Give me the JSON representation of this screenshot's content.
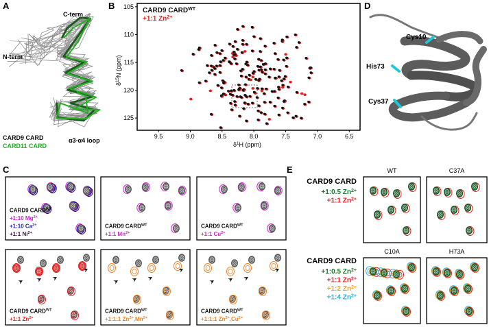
{
  "panels": {
    "a": "A",
    "b": "B",
    "c": "C",
    "d": "D",
    "e": "E"
  },
  "panel_a": {
    "c_term": "C-term",
    "n_term": "N-term",
    "loop": "α3-α4 loop",
    "legend": [
      {
        "text": "CARD9 CARD",
        "color": "#111111"
      },
      {
        "text": "CARD11 CARD",
        "color": "#22b022"
      }
    ]
  },
  "panel_b": {
    "legend": [
      {
        "runs": [
          "CARD9 CARD",
          "WT"
        ],
        "color": "#111111"
      },
      {
        "runs": [
          "+1:1 Zn",
          "2+"
        ],
        "color": "#e02020"
      }
    ],
    "x_label": [
      "δ",
      "1",
      "H (ppm)"
    ],
    "y_label": [
      "δ",
      "15",
      "N (ppm)"
    ],
    "xlim": [
      9.835,
      6.33
    ],
    "ylim": [
      104.4,
      127.2
    ],
    "xticks": [
      9.5,
      {
        "value": 9,
        "label": "9.0"
      },
      8.5,
      {
        "value": 8,
        "label": "8.0"
      },
      7.5,
      {
        "value": 7,
        "label": "7.0"
      },
      6.5
    ],
    "yticks": [
      105,
      110,
      115,
      120,
      125
    ]
  },
  "panel_d": {
    "labels": [
      "Cys10",
      "His73",
      "Cys37"
    ]
  },
  "panel_c": {
    "boxes": [
      {
        "overlay": [
          "#d020d0",
          "#2020c0",
          "#3a0a50"
        ],
        "lines": [
          {
            "runs": [
              "CARD9 CARD",
              "WT"
            ],
            "color": "#111111"
          },
          {
            "runs": [
              "+1:10 Mg",
              "2+"
            ],
            "color": "#d020d0"
          },
          {
            "runs": [
              "+1:10 Ca",
              "2+"
            ],
            "color": "#2020c0"
          },
          {
            "runs": [
              "+1:1 Ni",
              "2+"
            ],
            "color": "#3a0a50"
          }
        ]
      },
      {
        "overlay": [
          "#d020d0"
        ],
        "lines": [
          {
            "runs": [
              "CARD9 CARD",
              "WT"
            ],
            "color": "#111111"
          },
          {
            "runs": [
              "+1:1 Mn",
              "2+"
            ],
            "color": "#d020d0"
          }
        ]
      },
      {
        "overlay": [
          "#d020d0"
        ],
        "lines": [
          {
            "runs": [
              "CARD9 CARD",
              "WT"
            ],
            "color": "#111111"
          },
          {
            "runs": [
              "+1:1 Cu",
              "2+"
            ],
            "color": "#d020d0"
          }
        ]
      },
      {
        "overlay": [
          "#e02020"
        ],
        "lines": [
          {
            "runs": [
              "CARD9 CARD",
              "WT"
            ],
            "color": "#111111"
          },
          {
            "runs": [
              "+1:1 Zn",
              "2+"
            ],
            "color": "#e02020"
          }
        ]
      },
      {
        "overlay": [
          "#f08020"
        ],
        "lines": [
          {
            "runs": [
              "CARD9 CARD",
              "WT"
            ],
            "color": "#111111"
          },
          {
            "runs": [
              "+1:1:1 Zn",
              "2+",
              ",Mn",
              "2+"
            ],
            "color": "#f08020"
          }
        ]
      },
      {
        "overlay": [
          "#f08020"
        ],
        "lines": [
          {
            "runs": [
              "CARD9 CARD",
              "WT"
            ],
            "color": "#111111"
          },
          {
            "runs": [
              "+1:1:1 Zn",
              "2+",
              ",Cu",
              "2+"
            ],
            "color": "#f08020"
          }
        ]
      }
    ]
  },
  "panel_e": {
    "titles": [
      "WT",
      "C37A",
      "C10A",
      "H73A"
    ],
    "groups": [
      {
        "title": "CARD9 CARD",
        "lines": [
          {
            "runs": [
              "+1:0.5 Zn",
              "2+"
            ],
            "color": "#1a7a2a"
          },
          {
            "runs": [
              "+1:1 Zn",
              "2+"
            ],
            "color": "#e02020"
          }
        ]
      },
      {
        "title": "CARD9 CARD",
        "lines": [
          {
            "runs": [
              "+1:0.5 Zn",
              "2+"
            ],
            "color": "#1a7a2a"
          },
          {
            "runs": [
              "+1:1 Zn",
              "2+"
            ],
            "color": "#e02020"
          },
          {
            "runs": [
              "+1:2 Zn",
              "2+"
            ],
            "color": "#f0a020"
          },
          {
            "runs": [
              "+1:4 Zn",
              "2+"
            ],
            "color": "#20b0e0"
          }
        ]
      }
    ]
  }
}
